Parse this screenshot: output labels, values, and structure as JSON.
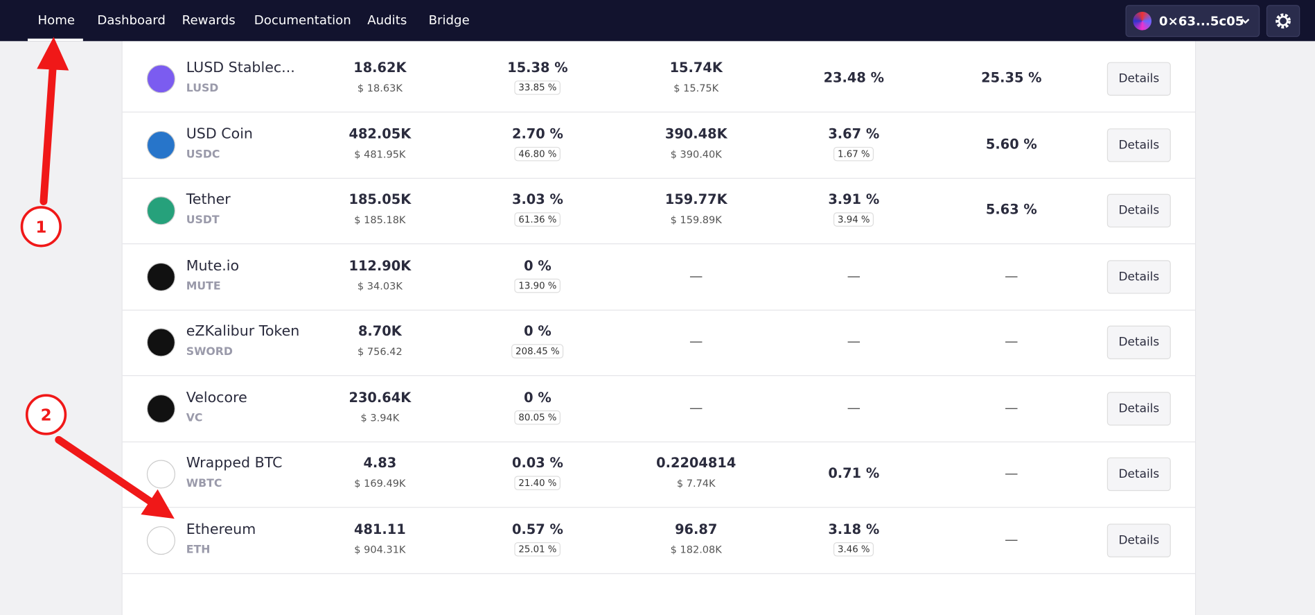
{
  "nav": {
    "items": [
      "Home",
      "Dashboard",
      "Rewards",
      "Documentation",
      "Audits",
      "Bridge"
    ],
    "wallet": "0×63...5c05"
  },
  "annotations": [
    "1",
    "2"
  ],
  "table": {
    "button": "Details",
    "rows": [
      {
        "name": "LUSD Stablec...",
        "symbol": "LUSD",
        "c1": "18.62K",
        "c1sub": "$ 18.63K",
        "c2": "15.38 %",
        "c2badge": "33.85 %",
        "c3": "15.74K",
        "c3sub": "$ 15.75K",
        "c4": "23.48 %",
        "c5": "25.35 %"
      },
      {
        "name": "USD Coin",
        "symbol": "USDC",
        "c1": "482.05K",
        "c1sub": "$ 481.95K",
        "c2": "2.70 %",
        "c2badge": "46.80 %",
        "c3": "390.48K",
        "c3sub": "$ 390.40K",
        "c4": "3.67 %",
        "c4badge": "1.67 %",
        "c5": "5.60 %"
      },
      {
        "name": "Tether",
        "symbol": "USDT",
        "c1": "185.05K",
        "c1sub": "$ 185.18K",
        "c2": "3.03 %",
        "c2badge": "61.36 %",
        "c3": "159.77K",
        "c3sub": "$ 159.89K",
        "c4": "3.91 %",
        "c4badge": "3.94 %",
        "c5": "5.63 %"
      },
      {
        "name": "Mute.io",
        "symbol": "MUTE",
        "c1": "112.90K",
        "c1sub": "$ 34.03K",
        "c2": "0 %",
        "c2badge": "13.90 %",
        "c3": "—",
        "c4": "—",
        "c5": "—"
      },
      {
        "name": "eZKalibur Token",
        "symbol": "SWORD",
        "c1": "8.70K",
        "c1sub": "$ 756.42",
        "c2": "0 %",
        "c2badge": "208.45 %",
        "c3": "—",
        "c4": "—",
        "c5": "—"
      },
      {
        "name": "Velocore",
        "symbol": "VC",
        "c1": "230.64K",
        "c1sub": "$ 3.94K",
        "c2": "0 %",
        "c2badge": "80.05 %",
        "c3": "—",
        "c4": "—",
        "c5": "—"
      },
      {
        "name": "Wrapped BTC",
        "symbol": "WBTC",
        "c1": "4.83",
        "c1sub": "$ 169.49K",
        "c2": "0.03 %",
        "c2badge": "21.40 %",
        "c3": "0.2204814",
        "c3sub": "$ 7.74K",
        "c4": "0.71 %",
        "c5": "—"
      },
      {
        "name": "Ethereum",
        "symbol": "ETH",
        "c1": "481.11",
        "c1sub": "$ 904.31K",
        "c2": "0.57 %",
        "c2badge": "25.01 %",
        "c3": "96.87",
        "c3sub": "$ 182.08K",
        "c4": "3.18 %",
        "c4badge": "3.46 %",
        "c5": "—"
      }
    ]
  }
}
